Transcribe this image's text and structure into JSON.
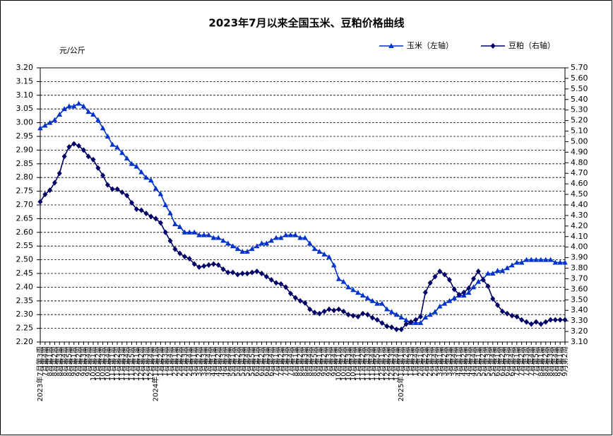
{
  "chart_data": {
    "type": "line",
    "title": "2023年7月以来全国玉米、豆粕价格曲线",
    "y_label": "元/公斤",
    "categories": [
      "2023年7月第3周",
      "7月第4周",
      "8月第1周",
      "8月第2周",
      "8月第3周",
      "8月第4周",
      "8月第5周",
      "9月第1周",
      "9月第2周",
      "9月第3周",
      "9月第4周",
      "10月第1周",
      "10月第2周",
      "10月第3周",
      "10月第4周",
      "11月第1周",
      "11月第2周",
      "11月第3周",
      "11月第4周",
      "11月第5周",
      "12月第1周",
      "12月第2周",
      "12月第3周",
      "12月第4周",
      "2024年1月第1周",
      "1月第2周",
      "1月第3周",
      "1月第4周",
      "2月第1周",
      "2月第2周",
      "2月第3周",
      "2月第4周",
      "3月第1周",
      "3月第2周",
      "3月第3周",
      "3月第4周",
      "4月第1周",
      "4月第2周",
      "4月第3周",
      "4月第4周",
      "5月第1周",
      "5月第2周",
      "5月第3周",
      "5月第4周",
      "5月第5周",
      "6月第1周",
      "6月第2周",
      "6月第3周",
      "6月第4周",
      "7月第1周",
      "7月第2周",
      "7月第3周",
      "7月第4周",
      "8月第1周",
      "8月第2周",
      "8月第3周",
      "8月第4周",
      "8月第5周",
      "9月第1周",
      "9月第2周",
      "9月第3周",
      "9月第4周",
      "10月第1周",
      "10月第2周",
      "10月第3周",
      "10月第4周",
      "11月第1周",
      "11月第2周",
      "11月第3周",
      "11月第4周",
      "11月第5周",
      "12月第1周",
      "12月第2周",
      "12月第3周",
      "12月第4周",
      "2025年1月第1周",
      "1月第2周",
      "1月第3周",
      "1月第4周",
      "2月第1周",
      "2月第2周",
      "2月第3周",
      "2月第4周",
      "3月第1周",
      "3月第2周",
      "3月第3周",
      "3月第4周",
      "4月第1周",
      "4月第2周",
      "4月第3周",
      "4月第4周",
      "5月第1周",
      "5月第2周",
      "5月第3周",
      "5月第4周",
      "6月第1周",
      "6月第2周",
      "6月第3周",
      "6月第4周",
      "7月第1周",
      "7月第2周",
      "7月第3周",
      "7月第4周",
      "7月第5周",
      "8月第1周",
      "8月第2周",
      "8月第3周",
      "8月第4周",
      "9月第1周",
      "9月第2周"
    ],
    "series": [
      {
        "name": "玉米（左轴）",
        "color": "#0033cc",
        "marker": "triangle",
        "axis": "y",
        "values": [
          2.98,
          2.99,
          3.0,
          3.01,
          3.03,
          3.05,
          3.06,
          3.06,
          3.07,
          3.06,
          3.04,
          3.03,
          3.01,
          2.98,
          2.95,
          2.92,
          2.91,
          2.89,
          2.87,
          2.85,
          2.84,
          2.82,
          2.8,
          2.79,
          2.76,
          2.74,
          2.7,
          2.67,
          2.63,
          2.62,
          2.6,
          2.6,
          2.6,
          2.59,
          2.59,
          2.59,
          2.58,
          2.58,
          2.57,
          2.56,
          2.55,
          2.54,
          2.53,
          2.53,
          2.54,
          2.55,
          2.56,
          2.56,
          2.57,
          2.58,
          2.58,
          2.59,
          2.59,
          2.59,
          2.58,
          2.58,
          2.56,
          2.54,
          2.53,
          2.52,
          2.51,
          2.48,
          2.43,
          2.42,
          2.4,
          2.39,
          2.38,
          2.37,
          2.36,
          2.35,
          2.34,
          2.34,
          2.32,
          2.31,
          2.3,
          2.29,
          2.28,
          2.27,
          2.27,
          2.27,
          2.29,
          2.3,
          2.31,
          2.33,
          2.34,
          2.35,
          2.36,
          2.37,
          2.37,
          2.38,
          2.4,
          2.42,
          2.43,
          2.45,
          2.45,
          2.46,
          2.46,
          2.47,
          2.48,
          2.49,
          2.49,
          2.5,
          2.5,
          2.5,
          2.5,
          2.5,
          2.5,
          2.49,
          2.49,
          2.49
        ]
      },
      {
        "name": "豆粕（右轴）",
        "color": "#000066",
        "marker": "diamond",
        "axis": "y2",
        "values": [
          4.43,
          4.5,
          4.54,
          4.61,
          4.7,
          4.86,
          4.95,
          4.98,
          4.96,
          4.92,
          4.86,
          4.83,
          4.75,
          4.68,
          4.59,
          4.55,
          4.55,
          4.52,
          4.49,
          4.42,
          4.36,
          4.35,
          4.32,
          4.29,
          4.27,
          4.23,
          4.14,
          4.06,
          3.98,
          3.94,
          3.91,
          3.89,
          3.84,
          3.81,
          3.82,
          3.83,
          3.84,
          3.83,
          3.79,
          3.76,
          3.76,
          3.74,
          3.75,
          3.75,
          3.76,
          3.77,
          3.75,
          3.72,
          3.69,
          3.66,
          3.65,
          3.62,
          3.56,
          3.52,
          3.49,
          3.47,
          3.41,
          3.38,
          3.37,
          3.39,
          3.41,
          3.4,
          3.41,
          3.39,
          3.36,
          3.35,
          3.34,
          3.37,
          3.36,
          3.33,
          3.31,
          3.28,
          3.25,
          3.24,
          3.22,
          3.22,
          3.27,
          3.29,
          3.31,
          3.34,
          3.57,
          3.66,
          3.72,
          3.77,
          3.74,
          3.69,
          3.6,
          3.55,
          3.57,
          3.61,
          3.7,
          3.77,
          3.69,
          3.63,
          3.51,
          3.45,
          3.39,
          3.37,
          3.35,
          3.34,
          3.31,
          3.29,
          3.27,
          3.29,
          3.27,
          3.29,
          3.31,
          3.31,
          3.31,
          3.31
        ]
      }
    ],
    "ylim": [
      2.2,
      3.2
    ],
    "yticks": [
      {
        "value": 2.2,
        "label": "2.20"
      },
      2.25,
      {
        "value": 2.3,
        "label": "2.30"
      },
      2.35,
      {
        "value": 2.4,
        "label": "2.40"
      },
      2.45,
      {
        "value": 2.5,
        "label": "2.50"
      },
      2.55,
      {
        "value": 2.6,
        "label": "2.60"
      },
      2.65,
      {
        "value": 2.7,
        "label": "2.70"
      },
      2.75,
      {
        "value": 2.8,
        "label": "2.80"
      },
      2.85,
      {
        "value": 2.9,
        "label": "2.90"
      },
      2.95,
      {
        "value": 3.0,
        "label": "3.00"
      },
      3.05,
      {
        "value": 3.1,
        "label": "3.10"
      },
      3.15,
      {
        "value": 3.2,
        "label": "3.20"
      }
    ],
    "y2lim": [
      3.1,
      5.7
    ],
    "y2ticks": [
      {
        "value": 3.1,
        "label": "3.10"
      },
      {
        "value": 3.2,
        "label": "3.20"
      },
      {
        "value": 3.3,
        "label": "3.30"
      },
      {
        "value": 3.4,
        "label": "3.40"
      },
      {
        "value": 3.5,
        "label": "3.50"
      },
      {
        "value": 3.6,
        "label": "3.60"
      },
      {
        "value": 3.7,
        "label": "3.70"
      },
      {
        "value": 3.8,
        "label": "3.80"
      },
      {
        "value": 3.9,
        "label": "3.90"
      },
      {
        "value": 4.0,
        "label": "4.00"
      },
      {
        "value": 4.1,
        "label": "4.10"
      },
      {
        "value": 4.2,
        "label": "4.20"
      },
      {
        "value": 4.3,
        "label": "4.30"
      },
      {
        "value": 4.4,
        "label": "4.40"
      },
      {
        "value": 4.5,
        "label": "4.50"
      },
      {
        "value": 4.6,
        "label": "4.60"
      },
      {
        "value": 4.7,
        "label": "4.70"
      },
      {
        "value": 4.8,
        "label": "4.80"
      },
      {
        "value": 4.9,
        "label": "4.90"
      },
      {
        "value": 5.0,
        "label": "5.00"
      },
      {
        "value": 5.1,
        "label": "5.10"
      },
      {
        "value": 5.2,
        "label": "5.20"
      },
      {
        "value": 5.3,
        "label": "5.30"
      },
      {
        "value": 5.4,
        "label": "5.40"
      },
      {
        "value": 5.5,
        "label": "5.50"
      },
      {
        "value": 5.6,
        "label": "5.60"
      },
      {
        "value": 5.7,
        "label": "5.70"
      }
    ],
    "grid": true,
    "legend": "top-right"
  }
}
